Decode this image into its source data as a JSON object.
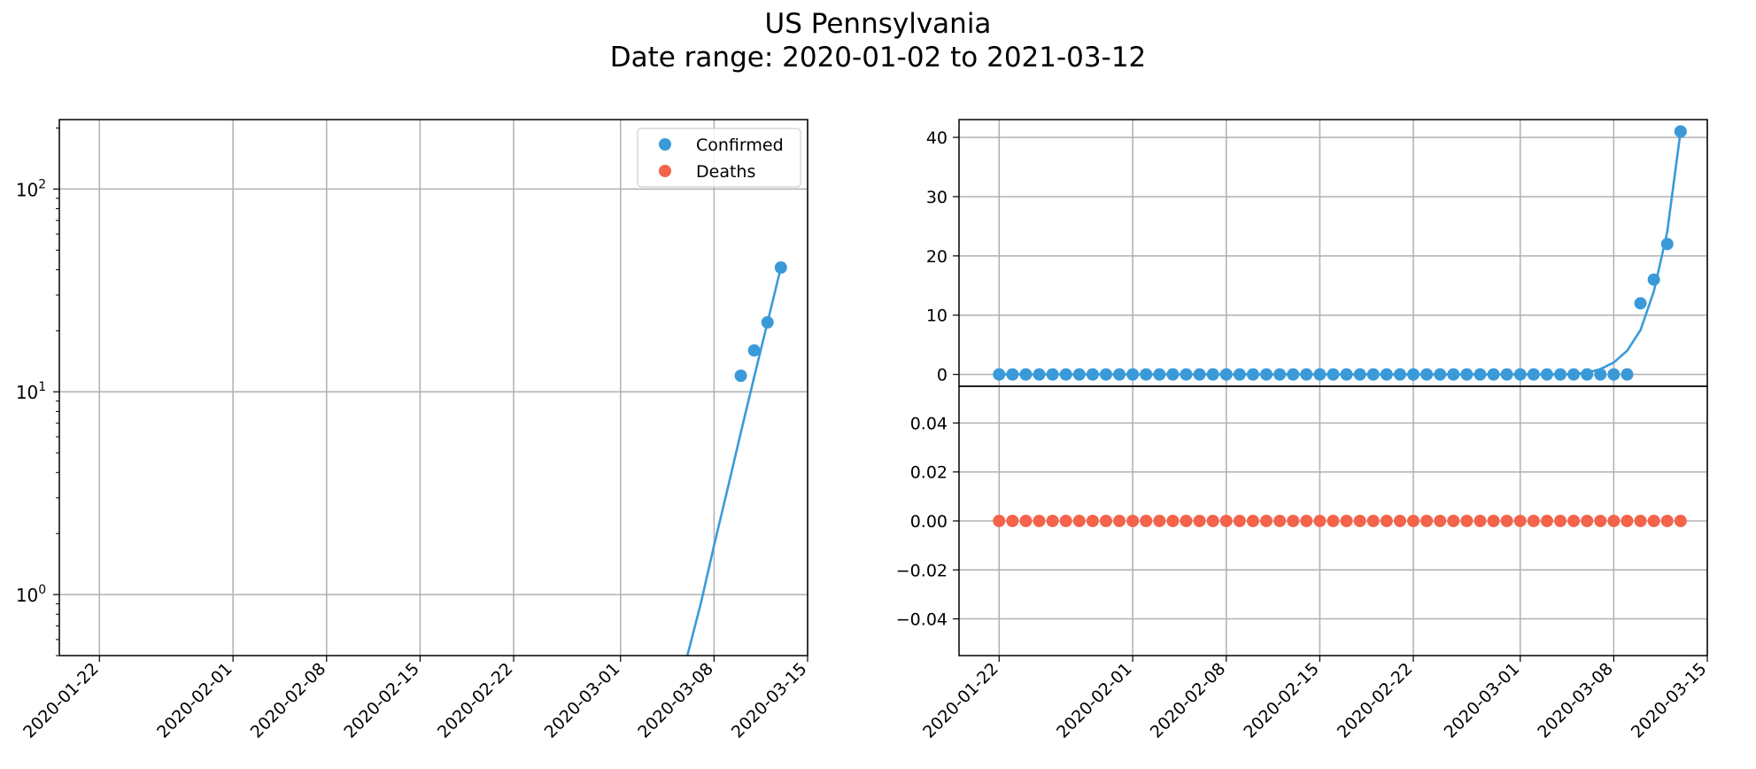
{
  "figure": {
    "title_line1": "US Pennsylvania",
    "title_line2": "Date range: 2020-01-02 to 2021-03-12"
  },
  "colors": {
    "confirmed": "#3a9ad9",
    "deaths": "#f4634a",
    "grid": "#b0b0b0"
  },
  "chart_data": [
    {
      "type": "scatter",
      "id": "left-log",
      "yscale": "log",
      "xlim": [
        "2020-01-19",
        "2020-03-15"
      ],
      "ylim": [
        0.5,
        220
      ],
      "grid": true,
      "legend": "top-right",
      "x_ticks": [
        "2020-01-22",
        "2020-02-01",
        "2020-02-08",
        "2020-02-15",
        "2020-02-22",
        "2020-03-01",
        "2020-03-08",
        "2020-03-15"
      ],
      "y_ticks": [
        {
          "value": 1,
          "base": "10",
          "exp": "0"
        },
        {
          "value": 10,
          "base": "10",
          "exp": "1"
        },
        {
          "value": 100,
          "base": "10",
          "exp": "2"
        }
      ],
      "legend_entries": [
        "Confirmed",
        "Deaths"
      ],
      "series": [
        {
          "name": "Confirmed",
          "x": [
            "2020-03-10",
            "2020-03-11",
            "2020-03-12",
            "2020-03-13"
          ],
          "y": [
            12,
            16,
            22,
            41
          ],
          "fit": {
            "x": [
              "2020-03-06",
              "2020-03-07",
              "2020-03-08",
              "2020-03-09",
              "2020-03-10",
              "2020-03-11",
              "2020-03-12",
              "2020-03-13"
            ],
            "y": [
              0.5,
              0.9,
              1.75,
              3.3,
              6.3,
              11.8,
              22,
              41
            ]
          }
        }
      ]
    },
    {
      "type": "scatter",
      "id": "right-top",
      "yscale": "linear",
      "xlim": [
        "2020-01-19",
        "2020-03-15"
      ],
      "ylim": [
        -2,
        43
      ],
      "grid": true,
      "x_ticks": [
        "2020-01-22",
        "2020-02-01",
        "2020-02-08",
        "2020-02-15",
        "2020-02-22",
        "2020-03-01",
        "2020-03-08",
        "2020-03-15"
      ],
      "y_ticks": [
        "0",
        "10",
        "20",
        "30",
        "40"
      ],
      "series": [
        {
          "name": "Confirmed",
          "start": "2020-01-22",
          "values": [
            0,
            0,
            0,
            0,
            0,
            0,
            0,
            0,
            0,
            0,
            0,
            0,
            0,
            0,
            0,
            0,
            0,
            0,
            0,
            0,
            0,
            0,
            0,
            0,
            0,
            0,
            0,
            0,
            0,
            0,
            0,
            0,
            0,
            0,
            0,
            0,
            0,
            0,
            0,
            0,
            0,
            0,
            0,
            0,
            0,
            0,
            0,
            0,
            12,
            16,
            22,
            41
          ],
          "fit": {
            "x": [
              "2020-03-04",
              "2020-03-05",
              "2020-03-06",
              "2020-03-07",
              "2020-03-08",
              "2020-03-09",
              "2020-03-10",
              "2020-03-11",
              "2020-03-12",
              "2020-03-13"
            ],
            "y": [
              0,
              0.05,
              0.3,
              0.9,
              2.0,
              4.0,
              7.5,
              14,
              24,
              41
            ]
          }
        }
      ]
    },
    {
      "type": "scatter",
      "id": "right-bottom",
      "yscale": "linear",
      "xlim": [
        "2020-01-19",
        "2020-03-15"
      ],
      "ylim": [
        -0.055,
        0.055
      ],
      "grid": true,
      "x_ticks": [
        "2020-01-22",
        "2020-02-01",
        "2020-02-08",
        "2020-02-15",
        "2020-02-22",
        "2020-03-01",
        "2020-03-08",
        "2020-03-15"
      ],
      "y_ticks": [
        "0.04",
        "0.02",
        "0.00",
        "−0.02",
        "−0.04"
      ],
      "series": [
        {
          "name": "Deaths",
          "start": "2020-01-22",
          "values": [
            0,
            0,
            0,
            0,
            0,
            0,
            0,
            0,
            0,
            0,
            0,
            0,
            0,
            0,
            0,
            0,
            0,
            0,
            0,
            0,
            0,
            0,
            0,
            0,
            0,
            0,
            0,
            0,
            0,
            0,
            0,
            0,
            0,
            0,
            0,
            0,
            0,
            0,
            0,
            0,
            0,
            0,
            0,
            0,
            0,
            0,
            0,
            0,
            0,
            0,
            0,
            0
          ]
        }
      ]
    }
  ]
}
